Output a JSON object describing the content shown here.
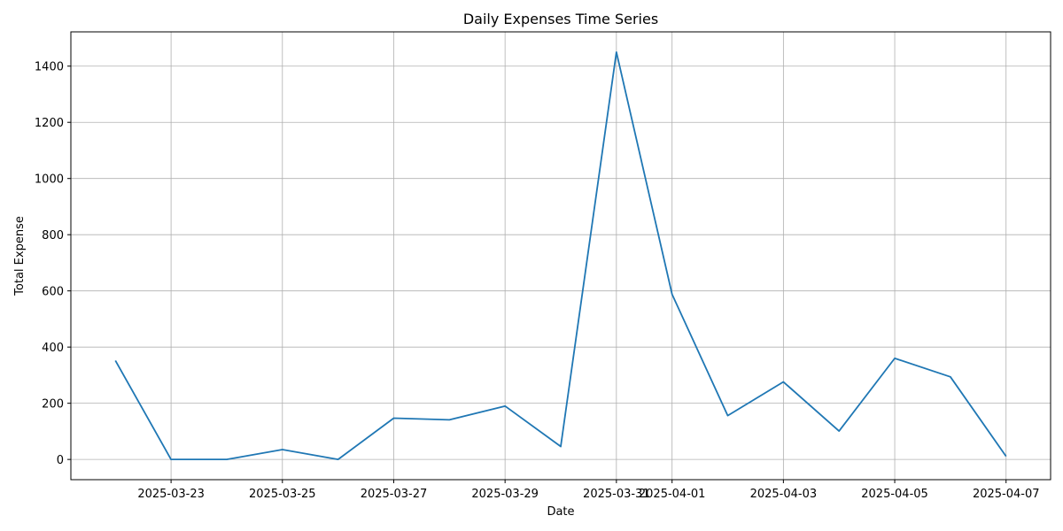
{
  "chart_data": {
    "type": "line",
    "title": "Daily Expenses Time Series",
    "xlabel": "Date",
    "ylabel": "Total Expense",
    "grid": true,
    "legend": "none",
    "series": [
      {
        "color": "#1f77b4",
        "x": [
          "2025-03-22",
          "2025-03-23",
          "2025-03-24",
          "2025-03-25",
          "2025-03-26",
          "2025-03-27",
          "2025-03-28",
          "2025-03-29",
          "2025-03-30",
          "2025-03-31",
          "2025-04-01",
          "2025-04-02",
          "2025-04-03",
          "2025-04-04",
          "2025-04-05",
          "2025-04-06",
          "2025-04-07"
        ],
        "values": [
          352,
          0,
          0,
          35,
          0,
          147,
          141,
          190,
          46,
          1450,
          588,
          156,
          276,
          101,
          360,
          294,
          11
        ]
      }
    ],
    "x_ticks": [
      "2025-03-23",
      "2025-03-25",
      "2025-03-27",
      "2025-03-29",
      "2025-03-31",
      "2025-04-01",
      "2025-04-03",
      "2025-04-05",
      "2025-04-07"
    ],
    "y_ticks": [
      0,
      200,
      400,
      600,
      800,
      1000,
      1200,
      1400
    ],
    "xlim": [
      "2025-03-21",
      "2025-04-07"
    ],
    "ylim": [
      -72,
      1522
    ]
  }
}
